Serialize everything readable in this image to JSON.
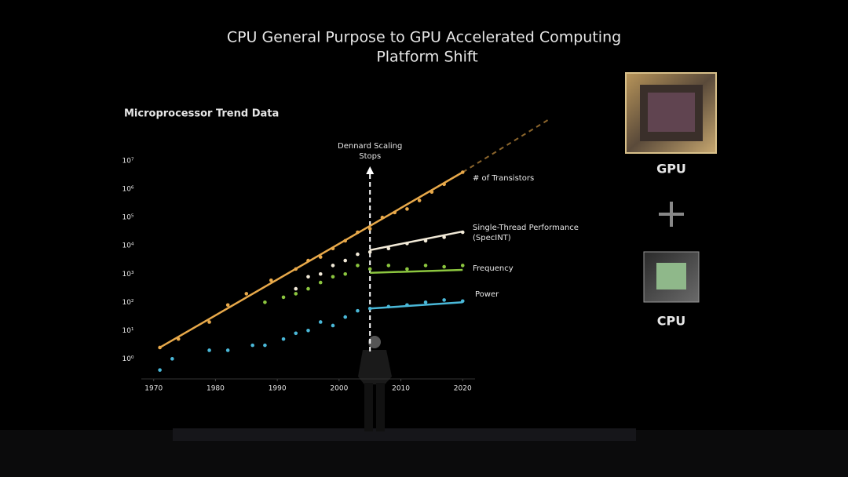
{
  "chart_data": {
    "type": "scatter",
    "title_lines": [
      "CPU General Purpose to GPU Accelerated Computing",
      "Platform Shift"
    ],
    "subtitle": "Microprocessor Trend Data",
    "log_y": true,
    "xlim": [
      1968,
      2022
    ],
    "xticks": [
      1970,
      1980,
      1990,
      2000,
      2010,
      2020
    ],
    "ylim": [
      0.25,
      50000000
    ],
    "yticks": [
      {
        "value": 1,
        "label": "10⁰"
      },
      {
        "value": 10,
        "label": "10¹"
      },
      {
        "value": 100,
        "label": "10²"
      },
      {
        "value": 1000,
        "label": "10³"
      },
      {
        "value": 10000,
        "label": "10⁴"
      },
      {
        "value": 100000,
        "label": "10⁵"
      },
      {
        "value": 1000000,
        "label": "10⁶"
      },
      {
        "value": 10000000,
        "label": "10⁷"
      }
    ],
    "annotation": {
      "lines": [
        "Dennard Scaling",
        "Stops"
      ],
      "x": 2005
    },
    "series": [
      {
        "name": "# of Transistors",
        "color": "#e8a94a",
        "x": [
          1971,
          1974,
          1979,
          1982,
          1985,
          1989,
          1993,
          1995,
          1997,
          1999,
          2001,
          2003,
          2005,
          2007,
          2009,
          2011,
          2013,
          2015,
          2017,
          2020
        ],
        "values": [
          2.5,
          5,
          20,
          80,
          200,
          600,
          1500,
          3000,
          4000,
          8000,
          15000,
          30000,
          40000,
          100000,
          150000,
          200000,
          400000,
          800000,
          1500000,
          4000000
        ],
        "trend": {
          "x": [
            1971,
            2020
          ],
          "values": [
            2.5,
            4000000
          ]
        },
        "projection": {
          "x": [
            2020,
            2034
          ],
          "values": [
            4000000,
            300000000
          ]
        }
      },
      {
        "name": "Single-Thread Performance (SpecINT)",
        "color": "#f2ead8",
        "x": [
          1993,
          1995,
          1997,
          1999,
          2001,
          2003,
          2005,
          2008,
          2011,
          2014,
          2017,
          2020
        ],
        "values": [
          300,
          800,
          1000,
          2000,
          3000,
          5000,
          6000,
          8000,
          12000,
          15000,
          20000,
          30000
        ],
        "trend": {
          "x": [
            2005,
            2020
          ],
          "values": [
            7000,
            32000
          ]
        }
      },
      {
        "name": "Frequency",
        "color": "#8cc63f",
        "x": [
          1988,
          1991,
          1993,
          1995,
          1997,
          1999,
          2001,
          2003,
          2005,
          2008,
          2011,
          2014,
          2017,
          2020
        ],
        "values": [
          100,
          150,
          200,
          300,
          500,
          800,
          1000,
          2000,
          1500,
          2000,
          1500,
          2000,
          1800,
          2000
        ],
        "trend": {
          "x": [
            2005,
            2020
          ],
          "values": [
            1100,
            1400
          ]
        }
      },
      {
        "name": "Power",
        "color": "#4ab8d8",
        "x": [
          1971,
          1973,
          1979,
          1982,
          1986,
          1988,
          1991,
          1993,
          1995,
          1997,
          1999,
          2001,
          2003,
          2005,
          2008,
          2011,
          2014,
          2017,
          2020
        ],
        "values": [
          0.4,
          1,
          2,
          2,
          3,
          3,
          5,
          8,
          10,
          20,
          15,
          30,
          50,
          60,
          70,
          80,
          100,
          120,
          110
        ],
        "trend": {
          "x": [
            2005,
            2020
          ],
          "values": [
            60,
            100
          ]
        }
      }
    ]
  },
  "side": {
    "gpu_label": "GPU",
    "cpu_label": "CPU"
  }
}
